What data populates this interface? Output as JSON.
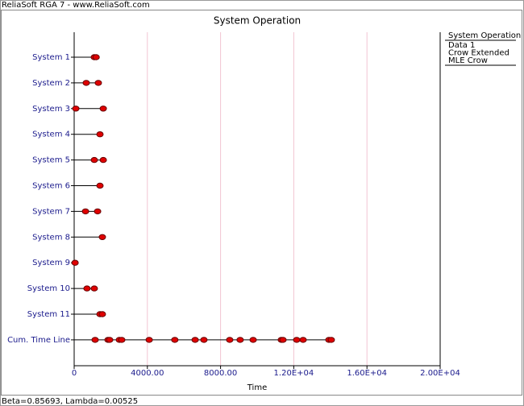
{
  "window_title": "ReliaSoft RGA 7 - www.ReliaSoft.com",
  "status_text": "Beta=0.85693, Lambda=0.00525",
  "chart_data": {
    "type": "event",
    "title": "System Operation",
    "x_label": "Time",
    "legend_title": "System Operation",
    "legend_items": [
      "Data 1",
      "Crow Extended",
      "MLE Crow"
    ],
    "categories": [
      "System 1",
      "System 2",
      "System 3",
      "System 4",
      "System 5",
      "System 6",
      "System 7",
      "System 8",
      "System 9",
      "System 10",
      "System 11",
      "Cum. Time Line"
    ],
    "ends": [
      1250,
      1320,
      1590,
      1410,
      1590,
      1410,
      1280,
      1540,
      50,
      1100,
      1540,
      14050
    ],
    "events": [
      [
        1100,
        1200
      ],
      [
        660,
        1320
      ],
      [
        90,
        1590
      ],
      [
        1410
      ],
      [
        1100,
        1590
      ],
      [
        1410
      ],
      [
        620,
        1280
      ],
      [
        1540
      ],
      [
        50
      ],
      [
        700,
        1100
      ],
      [
        1410,
        1540
      ],
      [
        1145,
        1850,
        1940,
        2470,
        2600,
        4100,
        5500,
        6610,
        7090,
        8500,
        9070,
        9780,
        11320,
        11410,
        12160,
        12510,
        13920,
        14050
      ]
    ],
    "color": "#e00000",
    "grid_color": "#f2c4d2",
    "xlim": [
      0,
      20000
    ],
    "xticks": [
      0,
      {
        "value": 4000,
        "label": "4000.00"
      },
      {
        "value": 8000,
        "label": "8000.00"
      },
      {
        "value": 12000,
        "label": "1.20E+04"
      },
      {
        "value": 16000,
        "label": "1.60E+04"
      },
      {
        "value": 20000,
        "label": "2.00E+04"
      }
    ],
    "grid": true
  }
}
